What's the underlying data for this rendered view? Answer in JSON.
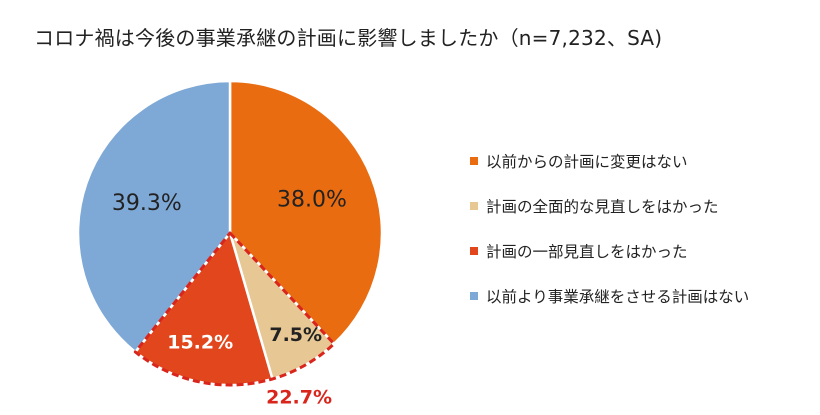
{
  "chart_data": {
    "type": "pie",
    "title": "コロナ禍は今後の事業承継の計画に影響しましたか（n=7,232、SA)",
    "slices": [
      {
        "label": "以前からの計画に変更はない",
        "value": 38.0,
        "value_label": "38.0%",
        "color": "#E96C10"
      },
      {
        "label": "計画の全面的な見直しをはかった",
        "value": 7.5,
        "value_label": "7.5%",
        "color": "#E7C894"
      },
      {
        "label": "計画の一部見直しをはかった",
        "value": 15.2,
        "value_label": "15.2%",
        "color": "#E1461C"
      },
      {
        "label": "以前より事業承継をさせる計画はない",
        "value": 39.3,
        "value_label": "39.3%",
        "color": "#7EA8D5"
      }
    ],
    "group_annotation": {
      "label": "22.7%",
      "slices": [
        1,
        2
      ],
      "color": "#D9251C",
      "style": "dashed-outline"
    },
    "legend_position": "right",
    "start_angle_deg": 0,
    "direction": "clockwise"
  }
}
